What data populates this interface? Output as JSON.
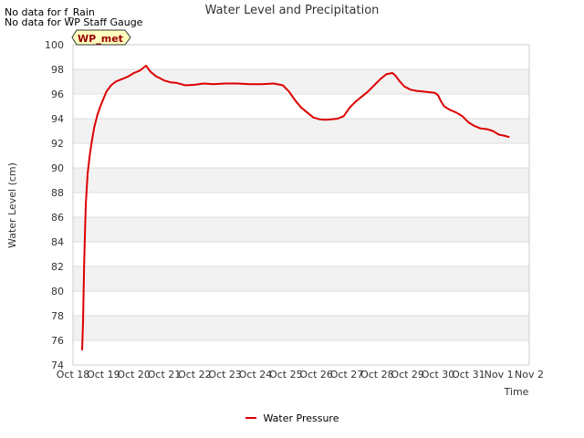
{
  "notes": [
    "No data for f_Rain",
    "No data for WP Staff Gauge"
  ],
  "chart_data": {
    "type": "line",
    "title": "Water Level and Precipitation",
    "xlabel": "Time",
    "ylabel": "Water Level (cm)",
    "site_label": "WP_met",
    "ylim": [
      74,
      100
    ],
    "y_ticks": [
      74,
      76,
      78,
      80,
      82,
      84,
      86,
      88,
      90,
      92,
      94,
      96,
      98,
      100
    ],
    "x_ticks": [
      "Oct 18",
      "Oct 19",
      "Oct 20",
      "Oct 21",
      "Oct 22",
      "Oct 23",
      "Oct 24",
      "Oct 25",
      "Oct 26",
      "Oct 27",
      "Oct 28",
      "Oct 29",
      "Oct 30",
      "Oct 31",
      "Nov 1",
      "Nov 2"
    ],
    "grid": true,
    "legend_position": "bottom-center",
    "series": [
      {
        "name": "Water Pressure",
        "color": "#dd0000",
        "x": [
          0.3,
          0.33,
          0.37,
          0.42,
          0.48,
          0.55,
          0.62,
          0.7,
          0.8,
          0.9,
          1.0,
          1.1,
          1.25,
          1.4,
          1.6,
          1.8,
          2.0,
          2.2,
          2.4,
          2.55,
          2.65,
          2.7,
          2.75,
          2.85,
          3.0,
          3.2,
          3.4,
          3.7,
          4.0,
          4.3,
          4.6,
          5.0,
          5.4,
          5.8,
          6.2,
          6.6,
          6.9,
          7.1,
          7.3,
          7.5,
          7.7,
          7.9,
          8.1,
          8.3,
          8.5,
          8.7,
          8.9,
          9.1,
          9.3,
          9.5,
          9.7,
          9.9,
          10.1,
          10.3,
          10.5,
          10.6,
          10.75,
          10.9,
          11.1,
          11.3,
          11.5,
          11.7,
          11.9,
          12.0,
          12.1,
          12.2,
          12.4,
          12.6,
          12.8,
          13.0,
          13.2,
          13.4,
          13.6,
          13.8,
          14.0,
          14.2,
          14.35
        ],
        "values": [
          75.2,
          77.5,
          82.5,
          87.0,
          89.5,
          91.0,
          92.2,
          93.3,
          94.3,
          95.0,
          95.6,
          96.2,
          96.7,
          97.0,
          97.2,
          97.4,
          97.7,
          97.9,
          98.3,
          97.8,
          97.6,
          97.5,
          97.4,
          97.3,
          97.1,
          96.95,
          96.9,
          96.7,
          96.75,
          96.85,
          96.8,
          96.85,
          96.85,
          96.8,
          96.8,
          96.85,
          96.7,
          96.2,
          95.5,
          94.9,
          94.5,
          94.1,
          93.95,
          93.9,
          93.95,
          94.0,
          94.2,
          94.9,
          95.4,
          95.8,
          96.2,
          96.7,
          97.2,
          97.6,
          97.7,
          97.5,
          97.0,
          96.6,
          96.35,
          96.25,
          96.2,
          96.15,
          96.1,
          95.9,
          95.4,
          95.0,
          94.7,
          94.5,
          94.2,
          93.7,
          93.4,
          93.2,
          93.15,
          93.0,
          92.7,
          92.6,
          92.5
        ]
      }
    ]
  }
}
